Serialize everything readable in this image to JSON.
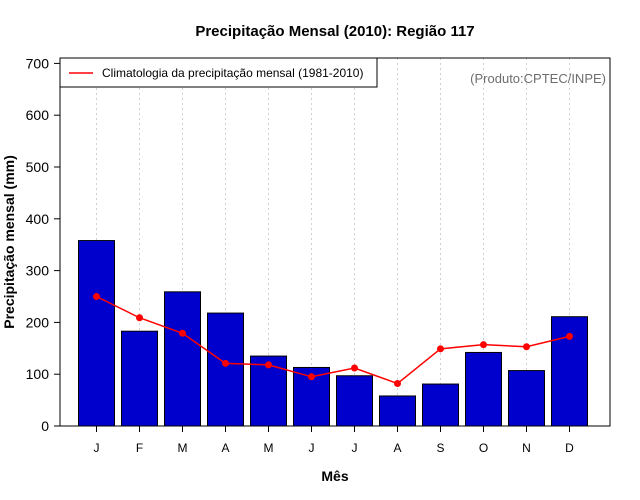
{
  "chart_data": {
    "type": "bar",
    "title": "Precipitação Mensal (2010): Região 117",
    "xlabel": "Mês",
    "ylabel": "Precipitação mensal (mm)",
    "ylim": [
      0,
      710
    ],
    "yticks": [
      0,
      100,
      200,
      300,
      400,
      500,
      600,
      700
    ],
    "categories": [
      "J",
      "F",
      "M",
      "A",
      "M",
      "J",
      "J",
      "A",
      "S",
      "O",
      "N",
      "D"
    ],
    "series": [
      {
        "name": "Precipitação mensal (2010)",
        "type": "bar",
        "color": "#0000cc",
        "values": [
          358,
          183,
          259,
          218,
          135,
          113,
          97,
          58,
          81,
          142,
          107,
          211
        ]
      },
      {
        "name": "Climatologia da precipitação mensal (1981-2010)",
        "type": "line",
        "color": "#ff0000",
        "values": [
          250,
          209,
          179,
          121,
          118,
          95,
          112,
          82,
          149,
          157,
          153,
          173
        ]
      }
    ],
    "legend": {
      "position": "top-left",
      "label": "Climatologia da precipitação mensal (1981-2010)"
    },
    "source": "(Produto:CPTEC/INPE)",
    "grid": "vertical-dotted"
  }
}
